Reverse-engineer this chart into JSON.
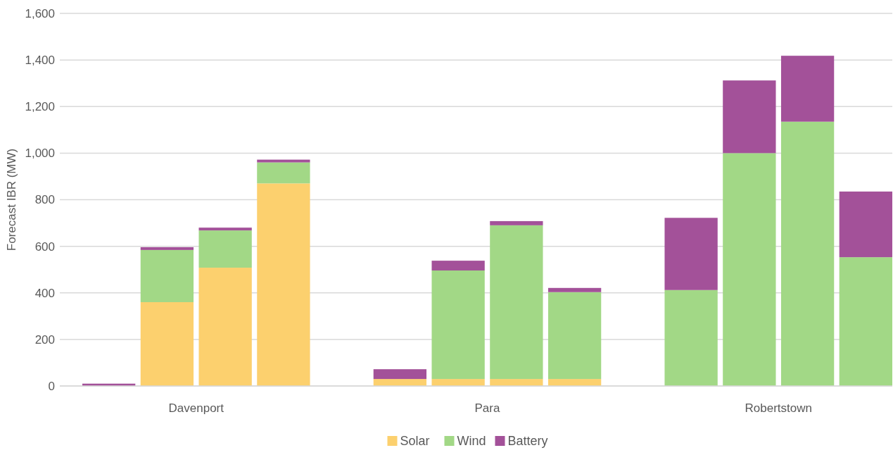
{
  "chart_data": {
    "type": "bar",
    "stacked": true,
    "ylabel": "Forecast IBR (MW)",
    "categories": [
      null,
      null,
      null,
      null,
      null,
      null,
      null,
      null,
      null,
      null,
      null,
      null
    ],
    "series": [
      {
        "name": "Solar",
        "color": "#fcd06e",
        "values": [
          0,
          360,
          508,
          870,
          30,
          30,
          30,
          30,
          0,
          0,
          0,
          0
        ]
      },
      {
        "name": "Wind",
        "color": "#a2d886",
        "values": [
          0,
          224,
          160,
          90,
          0,
          466,
          660,
          373,
          412,
          1000,
          1135,
          553
        ]
      },
      {
        "name": "Battery",
        "color": "#a35199",
        "values": [
          10,
          12,
          12,
          12,
          42,
          42,
          18,
          18,
          310,
          312,
          283,
          282
        ]
      }
    ],
    "annotations": [
      "Davenport",
      "Para",
      "Robertstown"
    ],
    "ylim": [
      0,
      1600
    ],
    "yticks": [
      0,
      200,
      400,
      600,
      800,
      {
        "value": 1000,
        "label": "1,000"
      },
      {
        "value": 1200,
        "label": "1,200"
      },
      {
        "value": 1400,
        "label": "1,400"
      },
      {
        "value": 1600,
        "label": "1,600"
      }
    ],
    "grid": "y",
    "legend": "bottom"
  }
}
